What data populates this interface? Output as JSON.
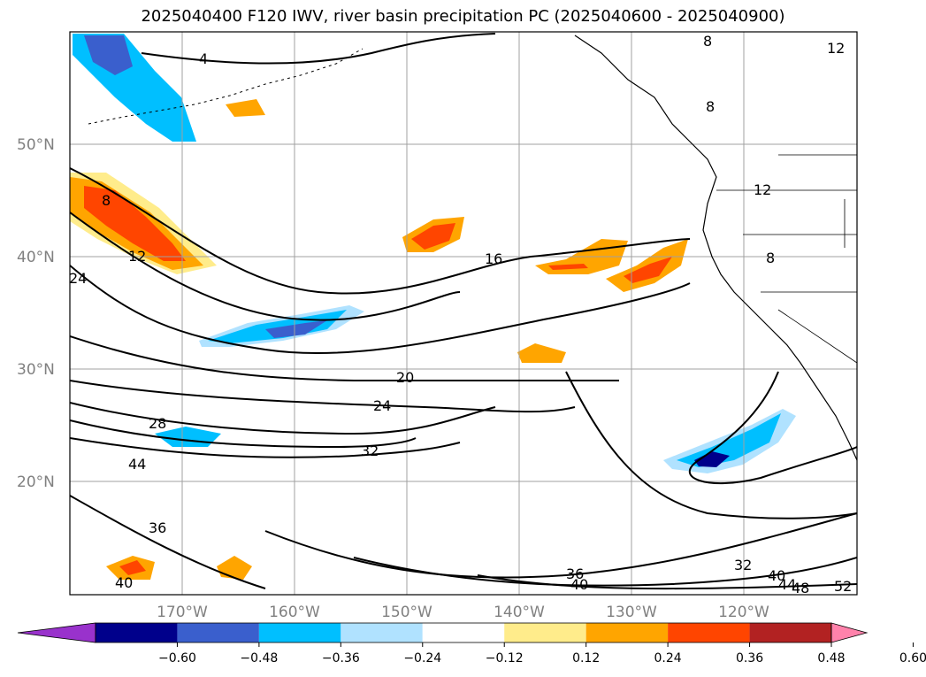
{
  "title": "2025040400 F120 IWV, river basin precipitation PC (2025040600 - 2025040900)",
  "lat_labels": [
    "50°N",
    "40°N",
    "30°N",
    "20°N"
  ],
  "lon_labels": [
    "170°W",
    "160°W",
    "150°W",
    "140°W",
    "130°W",
    "120°W"
  ],
  "colorbar": {
    "ticks": [
      "−0.60",
      "−0.48",
      "−0.36",
      "−0.24",
      "−0.12",
      "0.12",
      "0.24",
      "0.36",
      "0.48",
      "0.60"
    ],
    "colors": [
      "#9932cc",
      "#00008b",
      "#3a5fcd",
      "#00bfff",
      "#b0e2ff",
      "#ffffff",
      "#ffec8b",
      "#ffa500",
      "#ff4500",
      "#b22222",
      "#ff82ab"
    ]
  },
  "contour_labels": [
    "4",
    "8",
    "12",
    "16",
    "20",
    "24",
    "28",
    "32",
    "36",
    "40",
    "44",
    "48",
    "52"
  ],
  "contour_label_instances": [
    {
      "text": "4"
    },
    {
      "text": "8"
    },
    {
      "text": "12"
    },
    {
      "text": "16"
    },
    {
      "text": "20"
    },
    {
      "text": "24"
    },
    {
      "text": "28"
    },
    {
      "text": "32"
    },
    {
      "text": "36"
    },
    {
      "text": "40"
    },
    {
      "text": "44"
    },
    {
      "text": "48"
    },
    {
      "text": "52"
    },
    {
      "text": "24"
    },
    {
      "text": "44"
    },
    {
      "text": "36"
    },
    {
      "text": "40"
    },
    {
      "text": "32"
    },
    {
      "text": "40"
    },
    {
      "text": "8"
    },
    {
      "text": "8"
    },
    {
      "text": "12"
    },
    {
      "text": "12"
    },
    {
      "text": "8"
    }
  ]
}
